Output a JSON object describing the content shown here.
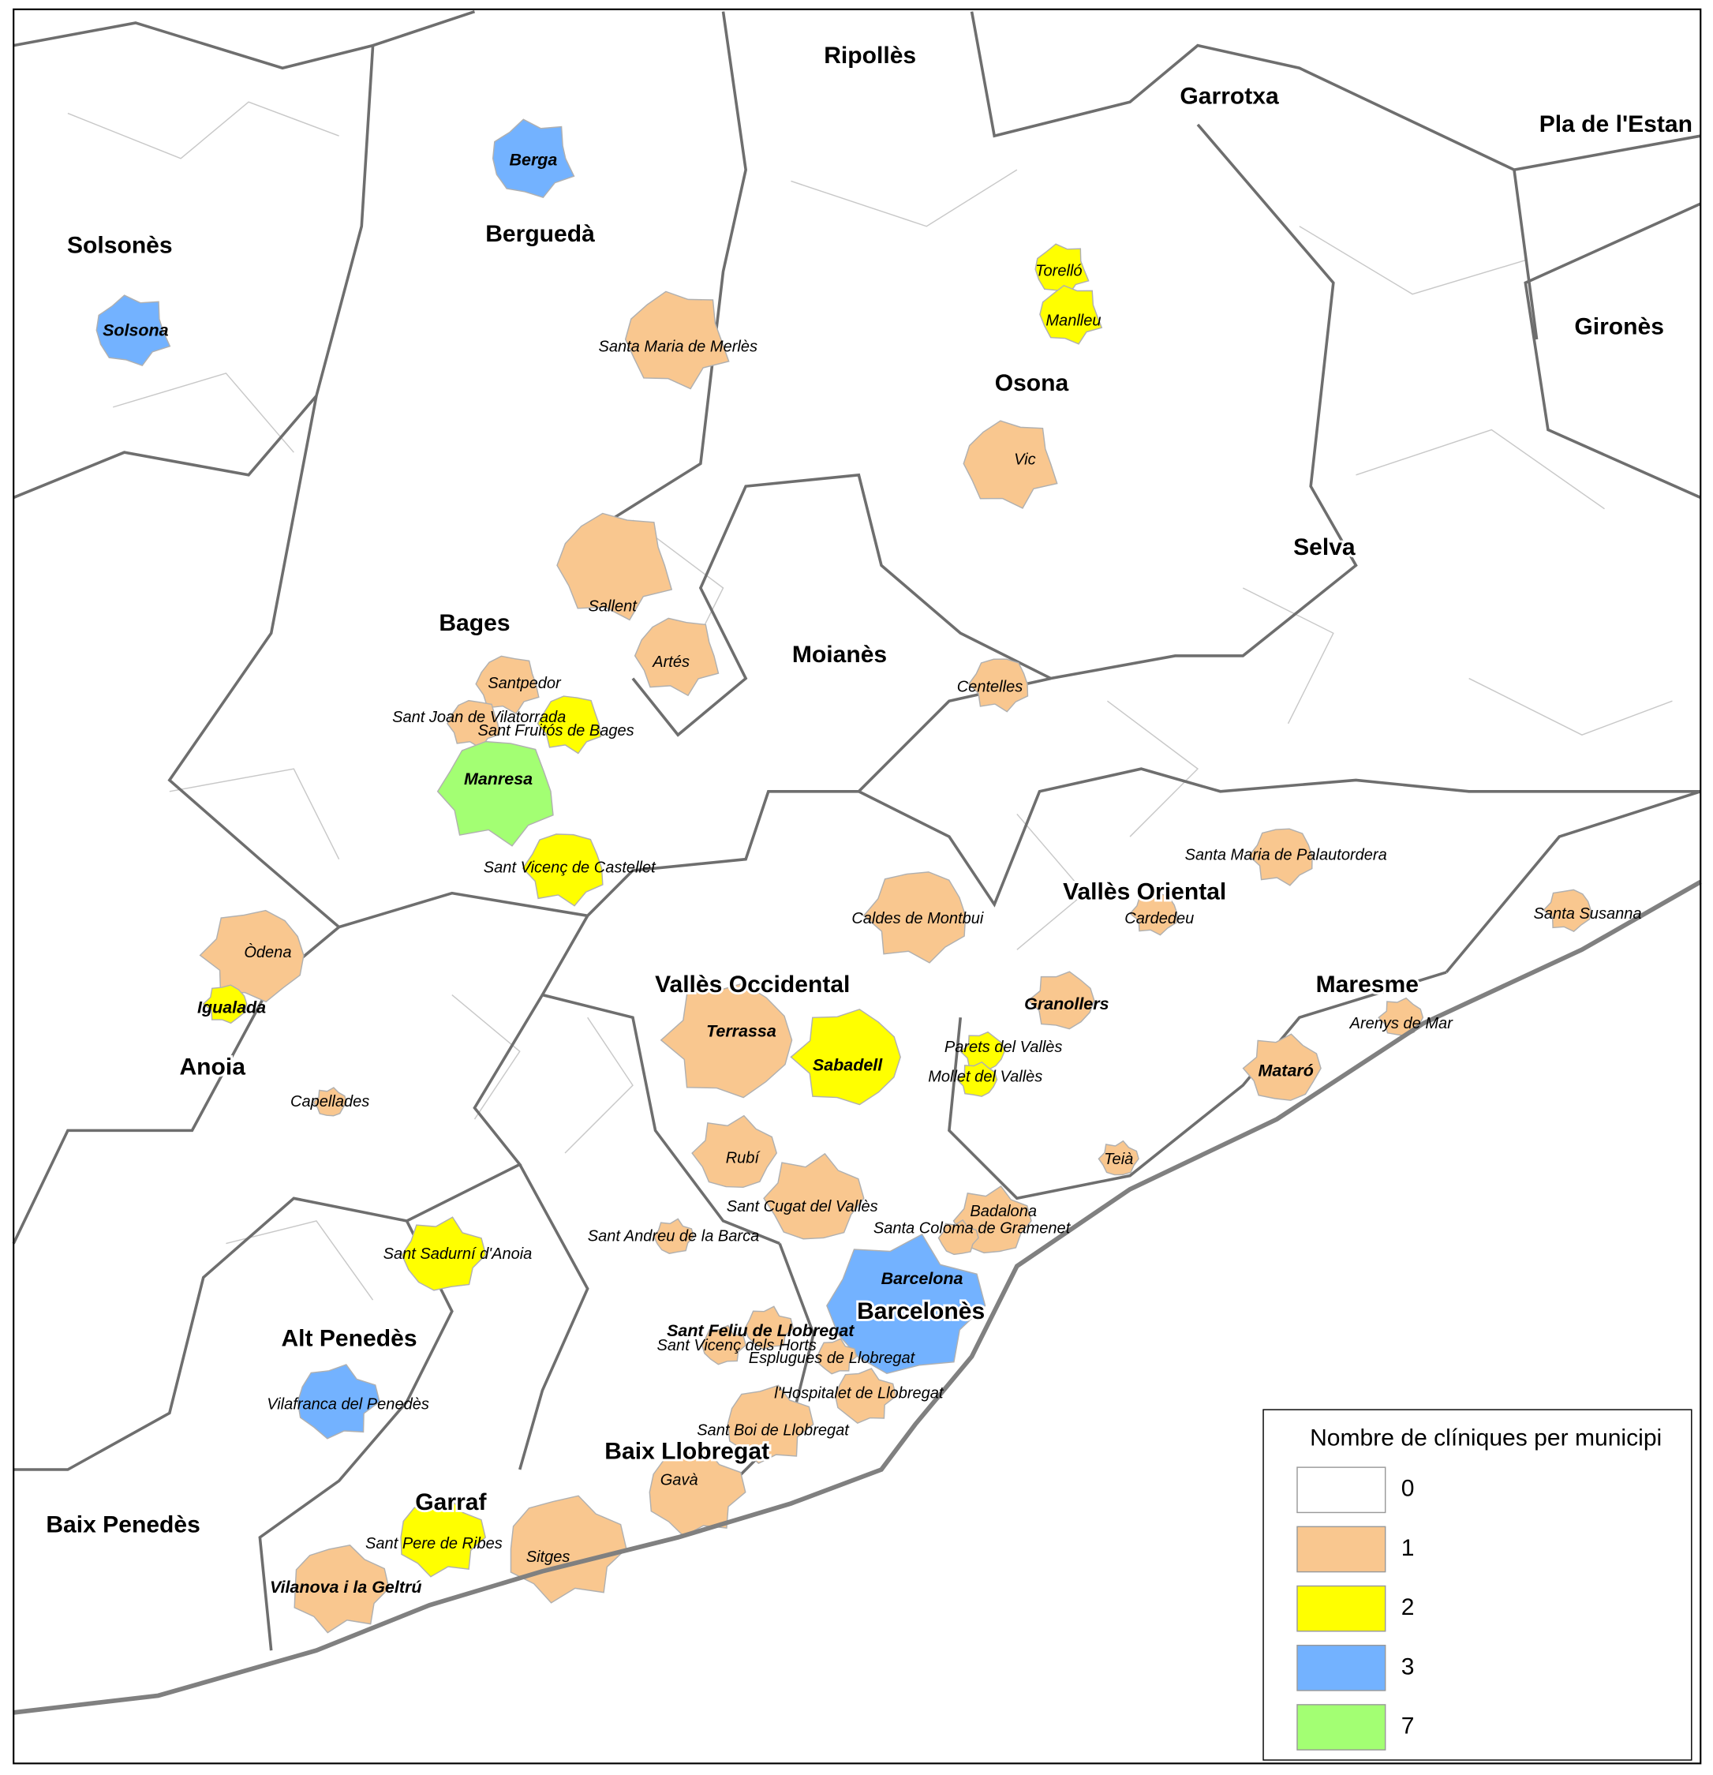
{
  "legend": {
    "title": "Nombre de clíniques per municipi",
    "entries": [
      {
        "value": 0,
        "color": "#ffffff"
      },
      {
        "value": 1,
        "color": "#f9c78f"
      },
      {
        "value": 2,
        "color": "#ffff00"
      },
      {
        "value": 3,
        "color": "#73b2ff"
      },
      {
        "value": 7,
        "color": "#a3ff73"
      }
    ]
  },
  "comarques": [
    "Ripollès",
    "Garrotxa",
    "Pla de l'Estan",
    "Berguedà",
    "Solsonès",
    "Gironès",
    "Osona",
    "Selva",
    "Bages",
    "Moianès",
    "Vallès Oriental",
    "Vallès Occidental",
    "Maresme",
    "Anoia",
    "Barcelonès",
    "Alt Penedès",
    "Baix Llobregat",
    "Garraf",
    "Baix Penedès"
  ],
  "municipalities": [
    {
      "name": "Berga",
      "count": 3
    },
    {
      "name": "Solsona",
      "count": 3
    },
    {
      "name": "Torelló",
      "count": 2
    },
    {
      "name": "Manlleu",
      "count": 2
    },
    {
      "name": "Santa Maria de Merlès",
      "count": 1
    },
    {
      "name": "Vic",
      "count": 1
    },
    {
      "name": "Sallent",
      "count": 1
    },
    {
      "name": "Artés",
      "count": 1
    },
    {
      "name": "Santpedor",
      "count": 1
    },
    {
      "name": "Sant Joan de Vilatorrada",
      "count": 1
    },
    {
      "name": "Sant Fruitós de Bages",
      "count": 2
    },
    {
      "name": "Manresa",
      "count": 7
    },
    {
      "name": "Sant Vicenç de Castellet",
      "count": 2
    },
    {
      "name": "Centelles",
      "count": 1
    },
    {
      "name": "Santa Maria de Palautordera",
      "count": 1
    },
    {
      "name": "Caldes de Montbui",
      "count": 1
    },
    {
      "name": "Cardedeu",
      "count": 1
    },
    {
      "name": "Santa Susanna",
      "count": 1
    },
    {
      "name": "Òdena",
      "count": 1
    },
    {
      "name": "Igualada",
      "count": 2
    },
    {
      "name": "Terrassa",
      "count": 1
    },
    {
      "name": "Sabadell",
      "count": 2
    },
    {
      "name": "Granollers",
      "count": 1
    },
    {
      "name": "Parets del Vallès",
      "count": 2
    },
    {
      "name": "Mollet del Vallès",
      "count": 2
    },
    {
      "name": "Arenys de Mar",
      "count": 1
    },
    {
      "name": "Mataró",
      "count": 1
    },
    {
      "name": "Capellades",
      "count": 1
    },
    {
      "name": "Rubí",
      "count": 1
    },
    {
      "name": "Teià",
      "count": 1
    },
    {
      "name": "Sant Cugat del Vallès",
      "count": 1
    },
    {
      "name": "Badalona",
      "count": 1
    },
    {
      "name": "Santa Coloma de Gramenet",
      "count": 1
    },
    {
      "name": "Sant Andreu de la Barca",
      "count": 1
    },
    {
      "name": "Sant Sadurní d'Anoia",
      "count": 2
    },
    {
      "name": "Barcelona",
      "count": 3
    },
    {
      "name": "Sant Feliu de Llobregat",
      "count": 1
    },
    {
      "name": "Sant Vicenç dels Horts",
      "count": 1
    },
    {
      "name": "Esplugues de Llobregat",
      "count": 1
    },
    {
      "name": "l'Hospitalet de Llobregat",
      "count": 1
    },
    {
      "name": "Vilafranca del Penedès",
      "count": 3
    },
    {
      "name": "Sant Boi de Llobregat",
      "count": 1
    },
    {
      "name": "Gavà",
      "count": 1
    },
    {
      "name": "Sant Pere de Ribes",
      "count": 2
    },
    {
      "name": "Sitges",
      "count": 1
    },
    {
      "name": "Vilanova i la Geltrú",
      "count": 1
    }
  ]
}
